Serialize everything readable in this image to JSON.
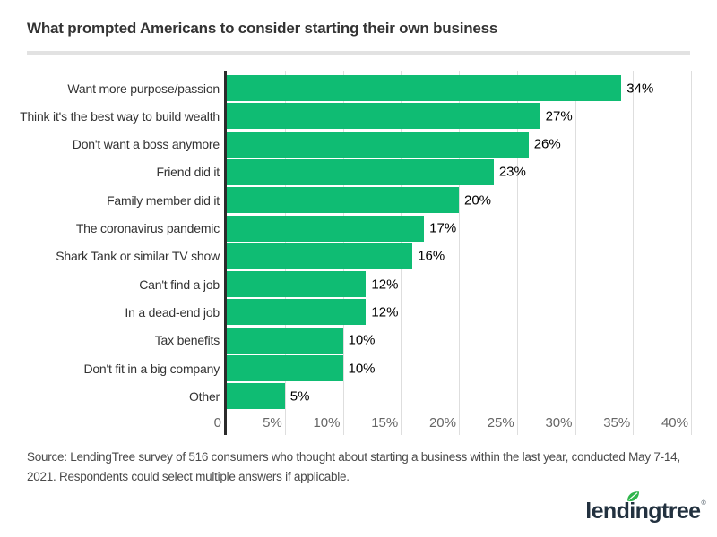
{
  "header": {
    "title": "What prompted Americans to consider starting their own business"
  },
  "chart_data": {
    "type": "bar",
    "orientation": "horizontal",
    "title": "What prompted Americans to consider starting their own business",
    "categories": [
      "Want more purpose/passion",
      "Think it's the best way to build wealth",
      "Don't want a boss anymore",
      "Friend did it",
      "Family member did it",
      "The coronavirus pandemic",
      "Shark Tank or similar TV show",
      "Can't find a job",
      "In a dead-end job",
      "Tax benefits",
      "Don't fit in a big company",
      "Other"
    ],
    "values": [
      34,
      27,
      26,
      23,
      20,
      17,
      16,
      12,
      12,
      10,
      10,
      5
    ],
    "value_labels": [
      "34%",
      "27%",
      "26%",
      "23%",
      "20%",
      "17%",
      "16%",
      "12%",
      "12%",
      "10%",
      "10%",
      "5%"
    ],
    "xlabel": "",
    "ylabel": "",
    "xlim": [
      0,
      40
    ],
    "grid": true,
    "ticks": [
      {
        "value": 0,
        "label": "0"
      },
      {
        "value": 5,
        "label": "5%"
      },
      {
        "value": 10,
        "label": "10%"
      },
      {
        "value": 15,
        "label": "15%"
      },
      {
        "value": 20,
        "label": "20%"
      },
      {
        "value": 25,
        "label": "25%"
      },
      {
        "value": 30,
        "label": "30%"
      },
      {
        "value": 35,
        "label": "35%"
      },
      {
        "value": 40,
        "label": "40%"
      }
    ],
    "bar_color": "#0fbc73"
  },
  "colors": {
    "bar_green": "#0fbc73",
    "axis_dark": "#2b2b2b",
    "gridline": "#dedede",
    "title_text": "#333333",
    "tick_text": "#666666",
    "source_text": "#4a4a4a",
    "logo_navy": "#22313f",
    "leaf_green": "#2fb54b",
    "divider": "#e2e2e2"
  },
  "footer": {
    "source_lines": [
      "Source: LendingTree survey of 516 consumers who thought about starting a business within the last year, conducted May 7-14,",
      "2021. Respondents could select multiple answers if applicable."
    ],
    "logo": {
      "part1": "lend",
      "part2": "i",
      "part3": "ngtree",
      "trademark": "®",
      "full_name": "lendingtree"
    }
  }
}
